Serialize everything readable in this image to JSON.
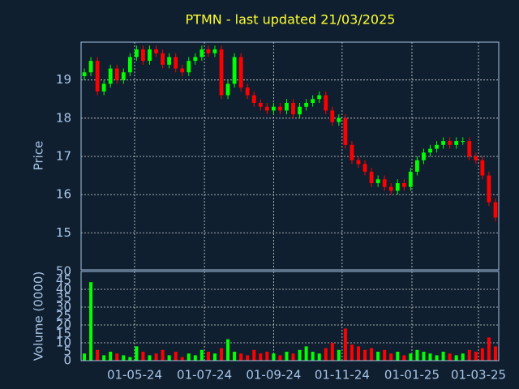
{
  "chart_data": {
    "type": "candlestick",
    "title": "PTMN - last updated 21/03/2025",
    "ylabel": "Price",
    "volume_label": "Volume (0000)",
    "up_color": "#00ff00",
    "down_color": "#ff0000",
    "grid": true,
    "xlim": [
      0,
      64
    ],
    "xticks": [
      {
        "value": 8.2,
        "label": "01-05-24"
      },
      {
        "value": 18.9,
        "label": "01-07-24"
      },
      {
        "value": 29.5,
        "label": "01-09-24"
      },
      {
        "value": 40.0,
        "label": "01-11-24"
      },
      {
        "value": 50.7,
        "label": "01-01-25"
      },
      {
        "value": 60.9,
        "label": "01-03-25"
      }
    ],
    "ylim": [
      14.03,
      19.99
    ],
    "yticks": [
      15,
      16,
      17,
      18,
      19
    ],
    "open": [
      19.1,
      19.2,
      19.5,
      18.7,
      18.9,
      19.3,
      19.0,
      19.2,
      19.6,
      19.8,
      19.5,
      19.8,
      19.7,
      19.4,
      19.6,
      19.3,
      19.2,
      19.5,
      19.6,
      19.8,
      19.7,
      19.8,
      18.6,
      18.9,
      19.6,
      18.8,
      18.6,
      18.4,
      18.3,
      18.2,
      18.3,
      18.2,
      18.4,
      18.1,
      18.3,
      18.4,
      18.5,
      18.6,
      18.2,
      17.9,
      18.0,
      17.3,
      16.9,
      16.8,
      16.6,
      16.3,
      16.4,
      16.2,
      16.1,
      16.3,
      16.2,
      16.6,
      16.9,
      17.1,
      17.2,
      17.3,
      17.4,
      17.3,
      17.4,
      17.4,
      17.0,
      16.9,
      16.5,
      15.8
    ],
    "high": [
      19.3,
      19.6,
      19.6,
      19.0,
      19.4,
      19.4,
      19.3,
      19.7,
      19.9,
      19.9,
      19.9,
      19.9,
      19.8,
      19.7,
      19.7,
      19.4,
      19.6,
      19.7,
      19.9,
      19.9,
      19.9,
      19.9,
      19.0,
      19.7,
      19.7,
      18.9,
      18.7,
      18.5,
      18.4,
      18.4,
      18.4,
      18.5,
      18.5,
      18.4,
      18.5,
      18.6,
      18.7,
      18.7,
      18.3,
      18.1,
      18.1,
      17.4,
      17.0,
      16.9,
      16.7,
      16.5,
      16.5,
      16.3,
      16.4,
      16.4,
      16.7,
      17.0,
      17.2,
      17.3,
      17.4,
      17.5,
      17.5,
      17.5,
      17.5,
      17.5,
      17.1,
      17.0,
      16.6,
      15.9
    ],
    "low": [
      19.0,
      19.1,
      18.6,
      18.6,
      18.8,
      18.9,
      18.9,
      19.1,
      19.5,
      19.4,
      19.4,
      19.6,
      19.3,
      19.3,
      19.2,
      19.1,
      19.1,
      19.4,
      19.5,
      19.6,
      19.6,
      18.5,
      18.5,
      18.8,
      18.7,
      18.5,
      18.3,
      18.2,
      18.1,
      18.1,
      18.1,
      18.1,
      18.0,
      18.0,
      18.2,
      18.3,
      18.4,
      18.1,
      17.8,
      17.8,
      17.2,
      16.8,
      16.7,
      16.5,
      16.2,
      16.2,
      16.1,
      16.0,
      16.0,
      16.1,
      16.1,
      16.5,
      16.8,
      17.0,
      17.1,
      17.2,
      17.2,
      17.2,
      17.3,
      16.9,
      16.8,
      16.4,
      15.7,
      15.3
    ],
    "close": [
      19.2,
      19.5,
      18.7,
      18.9,
      19.3,
      19.0,
      19.2,
      19.6,
      19.8,
      19.5,
      19.8,
      19.7,
      19.4,
      19.6,
      19.3,
      19.2,
      19.5,
      19.6,
      19.8,
      19.7,
      19.8,
      18.6,
      18.9,
      19.6,
      18.8,
      18.6,
      18.4,
      18.3,
      18.2,
      18.3,
      18.2,
      18.4,
      18.1,
      18.3,
      18.4,
      18.5,
      18.6,
      18.2,
      17.9,
      18.0,
      17.3,
      16.9,
      16.8,
      16.6,
      16.3,
      16.4,
      16.2,
      16.1,
      16.3,
      16.2,
      16.6,
      16.9,
      17.1,
      17.2,
      17.3,
      17.4,
      17.3,
      17.4,
      17.4,
      17.0,
      16.9,
      16.5,
      15.8,
      15.4
    ],
    "volume_ylim": [
      0,
      50
    ],
    "volume_yticks": [
      0,
      5,
      10,
      15,
      20,
      25,
      30,
      35,
      40,
      45,
      50
    ],
    "volume": [
      4,
      44,
      6,
      3,
      5,
      4,
      3,
      2,
      8,
      5,
      3,
      4,
      6,
      3,
      5,
      2,
      4,
      3,
      6,
      5,
      4,
      7,
      12,
      5,
      4,
      3,
      6,
      4,
      5,
      4,
      3,
      5,
      4,
      6,
      8,
      5,
      4,
      7,
      10,
      6,
      18,
      9,
      8,
      6,
      7,
      5,
      6,
      4,
      5,
      3,
      4,
      6,
      5,
      4,
      3,
      5,
      4,
      3,
      4,
      6,
      5,
      7,
      13,
      8
    ]
  }
}
